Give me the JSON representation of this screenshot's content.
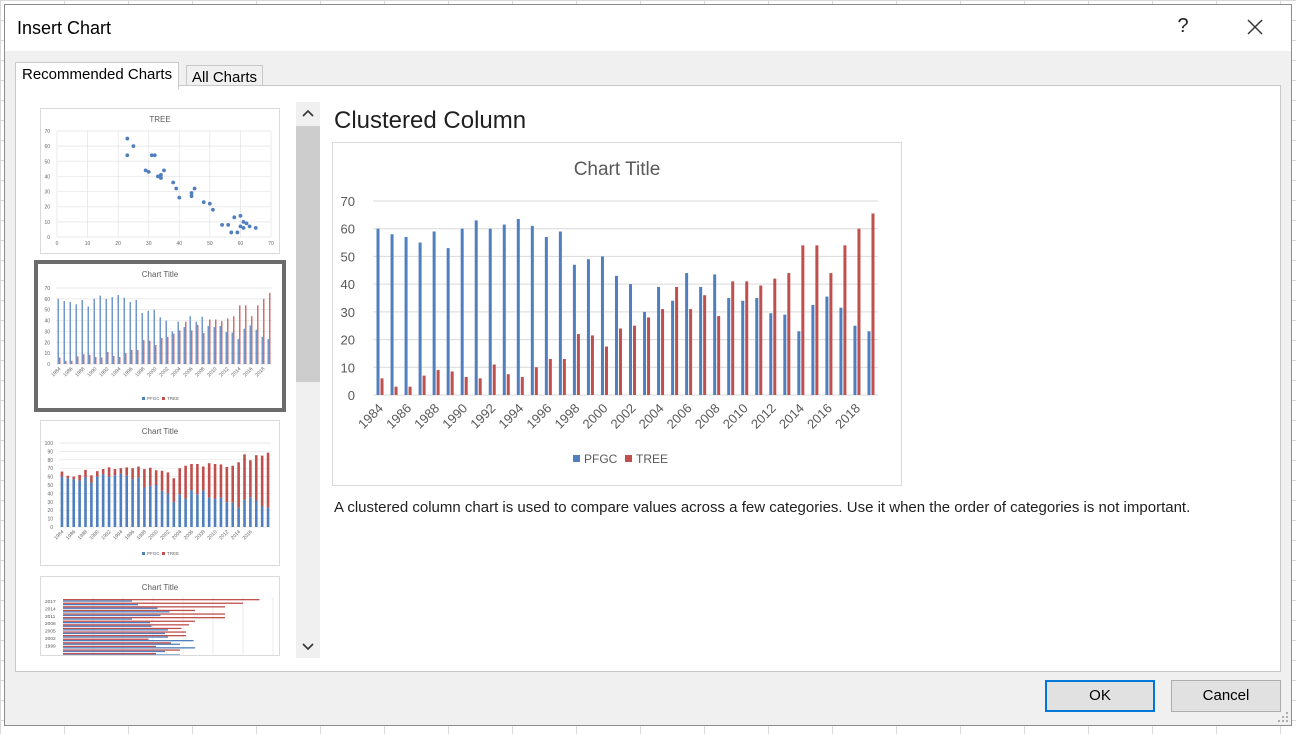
{
  "dialog": {
    "title": "Insert Chart",
    "help": "?"
  },
  "tabs": {
    "recommended": "Recommended Charts",
    "all": "All Charts"
  },
  "main": {
    "heading": "Clustered Column",
    "description": "A clustered column chart is used to compare values across a few categories. Use it when the order of categories is not important."
  },
  "buttons": {
    "ok": "OK",
    "cancel": "Cancel"
  },
  "colors": {
    "pfgc": "#4f7fbe",
    "tree": "#c0504d",
    "selection": "#6b6b6b",
    "ok_border": "#0078d7"
  },
  "thumbnails": [
    {
      "title": "TREE",
      "type": "scatter"
    },
    {
      "title": "Chart Title",
      "type": "bar",
      "legend": [
        "PFGC",
        "TREE"
      ]
    },
    {
      "title": "Chart Title",
      "type": "stacked-bar",
      "legend": [
        "PFGC",
        "TREE"
      ]
    },
    {
      "title": "Chart Title",
      "type": "horizontal-bar",
      "visible_categories": [
        "2017",
        "2014",
        "2011",
        "2008",
        "2005",
        "2002",
        "1999"
      ]
    }
  ],
  "thumbs": {
    "scatter": {
      "xticks": [
        "0",
        "10",
        "20",
        "30",
        "40",
        "50",
        "60",
        "70"
      ],
      "yticks": [
        "0",
        "10",
        "20",
        "30",
        "40",
        "50",
        "60",
        "70"
      ],
      "points": [
        [
          23,
          65
        ],
        [
          25,
          60
        ],
        [
          23,
          54
        ],
        [
          31,
          54
        ],
        [
          32,
          54
        ],
        [
          29,
          44
        ],
        [
          30,
          43
        ],
        [
          34,
          41
        ],
        [
          35,
          44
        ],
        [
          33,
          40
        ],
        [
          34,
          39
        ],
        [
          38,
          36
        ],
        [
          39,
          32
        ],
        [
          40,
          26
        ],
        [
          44,
          27
        ],
        [
          45,
          32
        ],
        [
          44,
          29
        ],
        [
          48,
          23
        ],
        [
          50,
          22
        ],
        [
          51,
          18
        ],
        [
          54,
          8
        ],
        [
          56,
          8
        ],
        [
          57,
          3
        ],
        [
          59,
          3
        ],
        [
          58,
          13
        ],
        [
          60,
          14
        ],
        [
          61,
          10
        ],
        [
          60,
          7
        ],
        [
          62,
          9
        ],
        [
          61,
          6
        ],
        [
          63,
          7
        ],
        [
          65,
          6
        ]
      ]
    },
    "bar": {
      "yticks": [
        "0",
        "10",
        "20",
        "30",
        "40",
        "50",
        "60",
        "70"
      ],
      "xticks": [
        "1984",
        "1986",
        "1988",
        "1990",
        "1992",
        "1994",
        "1996",
        "1998",
        "2000",
        "2002",
        "2004",
        "2006",
        "2008",
        "2010",
        "2012",
        "2014",
        "2016",
        "2018"
      ]
    },
    "stacked": {
      "yticks": [
        "0",
        "10",
        "20",
        "30",
        "40",
        "50",
        "60",
        "70",
        "80",
        "90",
        "100"
      ],
      "xticks": [
        "1984",
        "1986",
        "1988",
        "1990",
        "1992",
        "1994",
        "1996",
        "1998",
        "2000",
        "2002",
        "2004",
        "2006",
        "2008",
        "2010",
        "2012",
        "2014",
        "2016"
      ]
    }
  },
  "chart_data": {
    "type": "bar",
    "title": "Chart Title",
    "xlabel": "",
    "ylabel": "",
    "ylim": [
      0,
      70
    ],
    "yticks": [
      0,
      10,
      20,
      30,
      40,
      50,
      60,
      70
    ],
    "legend_position": "bottom",
    "categories": [
      "1984",
      "1985",
      "1986",
      "1987",
      "1988",
      "1989",
      "1990",
      "1991",
      "1992",
      "1993",
      "1994",
      "1995",
      "1996",
      "1997",
      "1998",
      "1999",
      "2000",
      "2001",
      "2002",
      "2003",
      "2004",
      "2005",
      "2006",
      "2007",
      "2008",
      "2009",
      "2010",
      "2011",
      "2012",
      "2013",
      "2014",
      "2015",
      "2016",
      "2017",
      "2018",
      "2019"
    ],
    "tick_labels": [
      "1984",
      "1986",
      "1988",
      "1990",
      "1992",
      "1994",
      "1996",
      "1998",
      "2000",
      "2002",
      "2004",
      "2006",
      "2008",
      "2010",
      "2012",
      "2014",
      "2016",
      "2018"
    ],
    "series": [
      {
        "name": "PFGC",
        "color": "#4f7fbe",
        "values": [
          60,
          58,
          57,
          55,
          59,
          53,
          60,
          63,
          60,
          61.5,
          63.5,
          61,
          57,
          59,
          47,
          49,
          50,
          43,
          40,
          30,
          39,
          34,
          44,
          39,
          43.5,
          35,
          34,
          35,
          29.5,
          29,
          23,
          32.5,
          35.5,
          31.5,
          25,
          23
        ]
      },
      {
        "name": "TREE",
        "color": "#c0504d",
        "values": [
          6,
          3,
          3,
          7,
          9,
          8.5,
          6.5,
          6,
          11,
          7.5,
          6.5,
          10,
          13,
          13,
          22,
          21.5,
          17.5,
          24,
          25,
          28,
          31,
          39,
          31,
          36,
          28.5,
          41,
          41,
          39.5,
          42,
          44,
          54,
          54,
          44,
          54,
          60,
          65.5
        ]
      }
    ]
  }
}
